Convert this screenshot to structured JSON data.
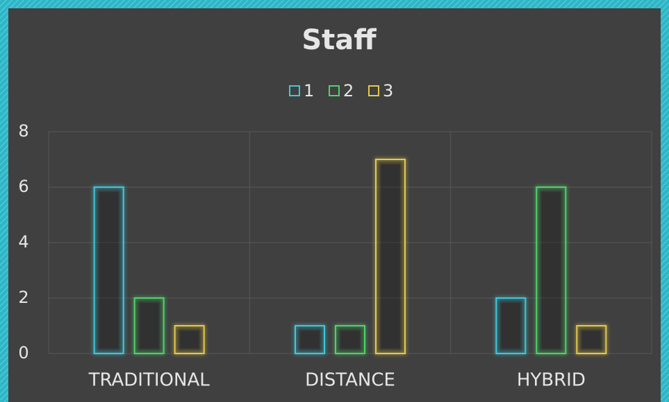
{
  "chart_data": {
    "type": "bar",
    "title": "Staff",
    "categories": [
      "TRADITIONAL",
      "DISTANCE",
      "HYBRID"
    ],
    "series": [
      {
        "name": "1",
        "color": "#3ec9dc",
        "values": [
          6,
          1,
          2
        ]
      },
      {
        "name": "2",
        "color": "#4fd36a",
        "values": [
          2,
          1,
          6
        ]
      },
      {
        "name": "3",
        "color": "#e3c94a",
        "values": [
          1,
          7,
          1
        ]
      }
    ],
    "ylim": [
      0,
      8
    ],
    "yticks": [
      0,
      2,
      4,
      6,
      8
    ],
    "grid": true,
    "legend": "top"
  }
}
